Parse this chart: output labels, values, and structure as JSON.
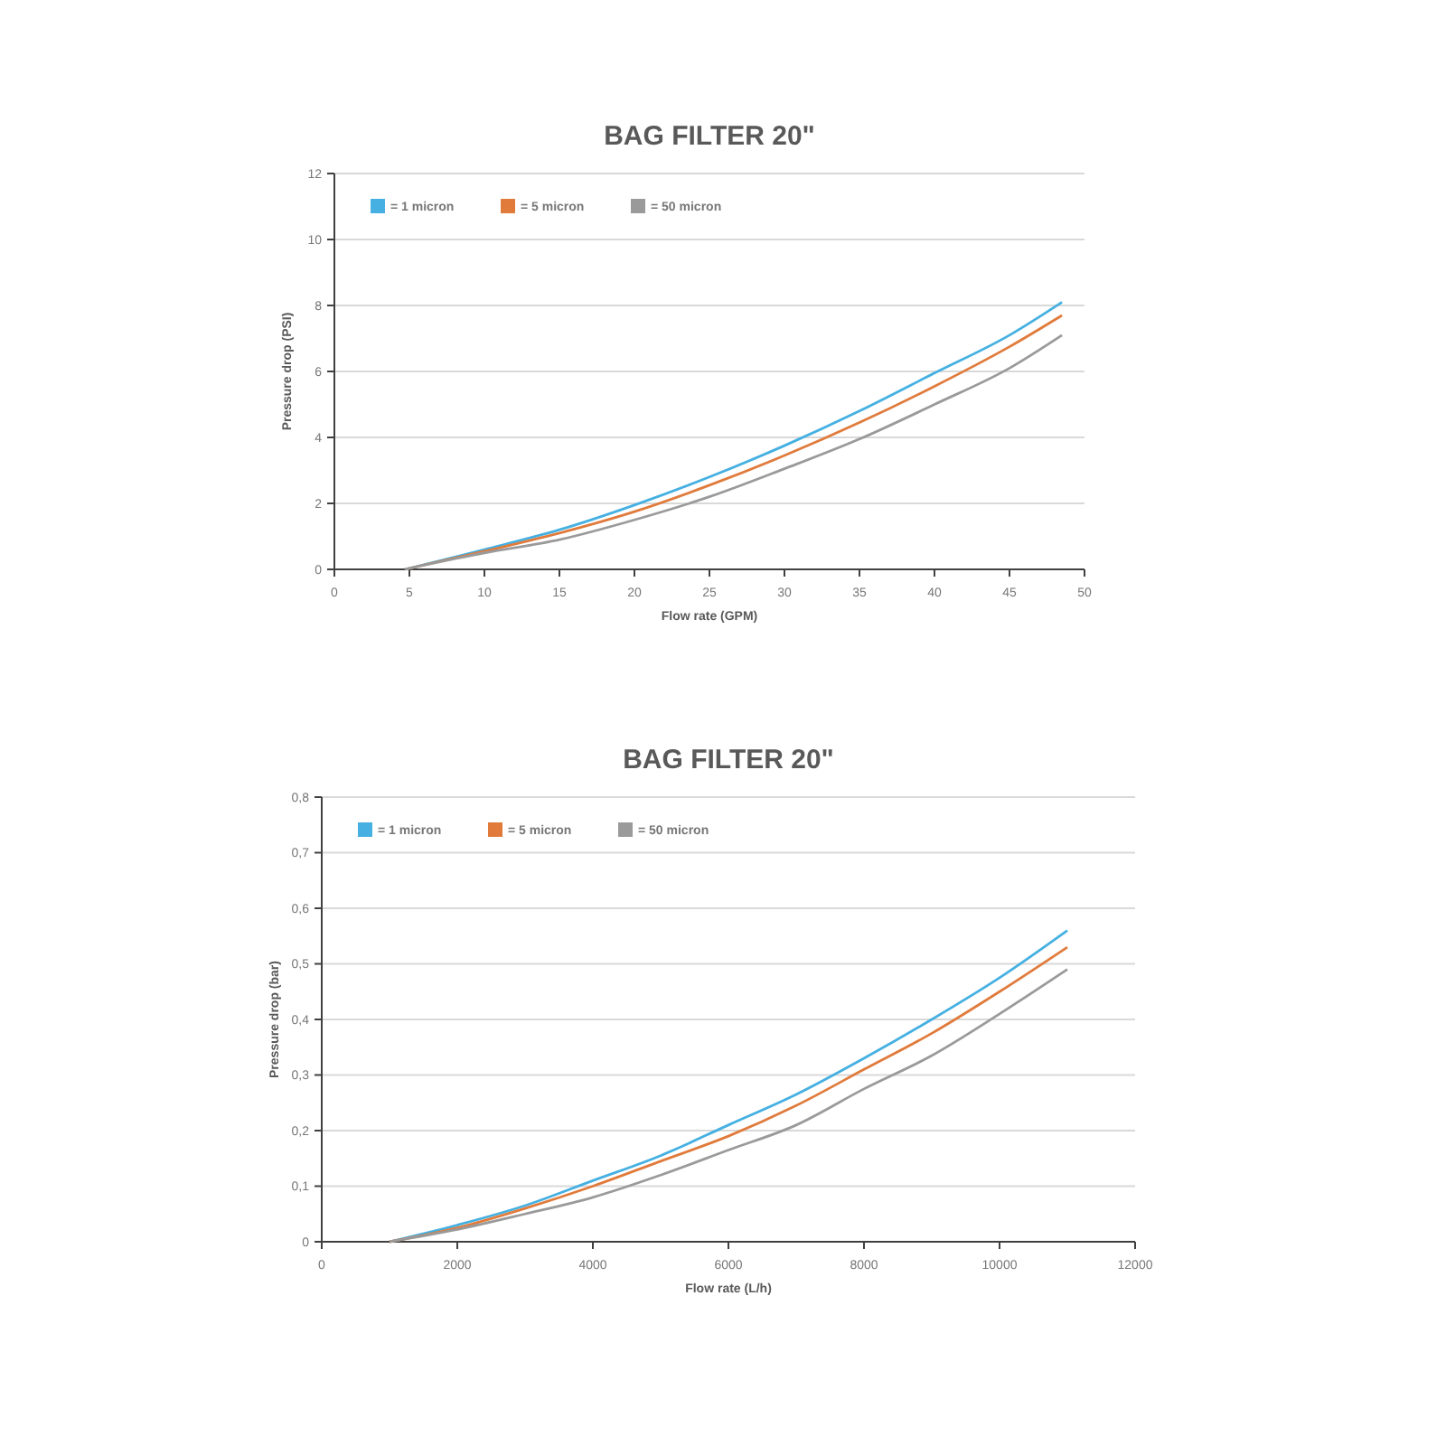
{
  "chart_data": [
    {
      "type": "line",
      "title": "BAG FILTER 20\"",
      "xlabel": "Flow rate (GPM)",
      "ylabel": "Pressure drop (PSI)",
      "xlim": [
        0,
        50
      ],
      "xticks": [
        0,
        5,
        10,
        15,
        20,
        25,
        30,
        35,
        40,
        45,
        50
      ],
      "ylim": [
        0,
        12
      ],
      "yticks": [
        0,
        2,
        4,
        6,
        8,
        10,
        12
      ],
      "grid": "y",
      "legend": "top left",
      "marker": "none",
      "x": [
        4.7,
        10,
        15,
        20,
        25,
        30,
        35,
        40,
        45,
        48.5
      ],
      "series": [
        {
          "name": "= 1 micron",
          "color": "#45b0e1",
          "values": [
            0,
            0.6,
            1.2,
            1.95,
            2.8,
            3.75,
            4.8,
            5.95,
            7.1,
            8.1
          ]
        },
        {
          "name": "= 5 micron",
          "color": "#e07b3c",
          "values": [
            0,
            0.55,
            1.1,
            1.75,
            2.55,
            3.45,
            4.45,
            5.55,
            6.75,
            7.7
          ]
        },
        {
          "name": "= 50 micron",
          "color": "#9a9a9a",
          "values": [
            0,
            0.5,
            0.9,
            1.5,
            2.2,
            3.05,
            3.95,
            5.0,
            6.1,
            7.1
          ]
        }
      ]
    },
    {
      "type": "line",
      "title": "BAG FILTER 20\"",
      "xlabel": "Flow rate (L/h)",
      "ylabel": "Pressure drop (bar)",
      "xlim": [
        0,
        12000
      ],
      "xticks": [
        0,
        2000,
        4000,
        6000,
        8000,
        10000,
        12000
      ],
      "ylim": [
        0,
        0.8
      ],
      "yticks": [
        0,
        {
          "value": 0.1,
          "label": "0,1"
        },
        {
          "value": 0.2,
          "label": "0,2"
        },
        {
          "value": 0.3,
          "label": "0,3"
        },
        {
          "value": 0.4,
          "label": "0,4"
        },
        {
          "value": 0.5,
          "label": "0,5"
        },
        {
          "value": 0.6,
          "label": "0,6"
        },
        {
          "value": 0.7,
          "label": "0,7"
        },
        {
          "value": 0.8,
          "label": "0,8"
        }
      ],
      "grid": "y",
      "legend": "top left",
      "marker": "none",
      "x": [
        1000,
        2000,
        3000,
        4000,
        5000,
        6000,
        7000,
        8000,
        9000,
        10000,
        11000
      ],
      "series": [
        {
          "name": "= 1 micron",
          "color": "#45b0e1",
          "values": [
            0,
            0.03,
            0.065,
            0.11,
            0.155,
            0.21,
            0.265,
            0.33,
            0.4,
            0.475,
            0.56
          ]
        },
        {
          "name": "= 5 micron",
          "color": "#e07b3c",
          "values": [
            0,
            0.025,
            0.06,
            0.1,
            0.145,
            0.19,
            0.245,
            0.31,
            0.375,
            0.45,
            0.53
          ]
        },
        {
          "name": "= 50 micron",
          "color": "#9a9a9a",
          "values": [
            0,
            0.022,
            0.05,
            0.08,
            0.12,
            0.165,
            0.21,
            0.275,
            0.335,
            0.41,
            0.49
          ]
        }
      ]
    }
  ]
}
